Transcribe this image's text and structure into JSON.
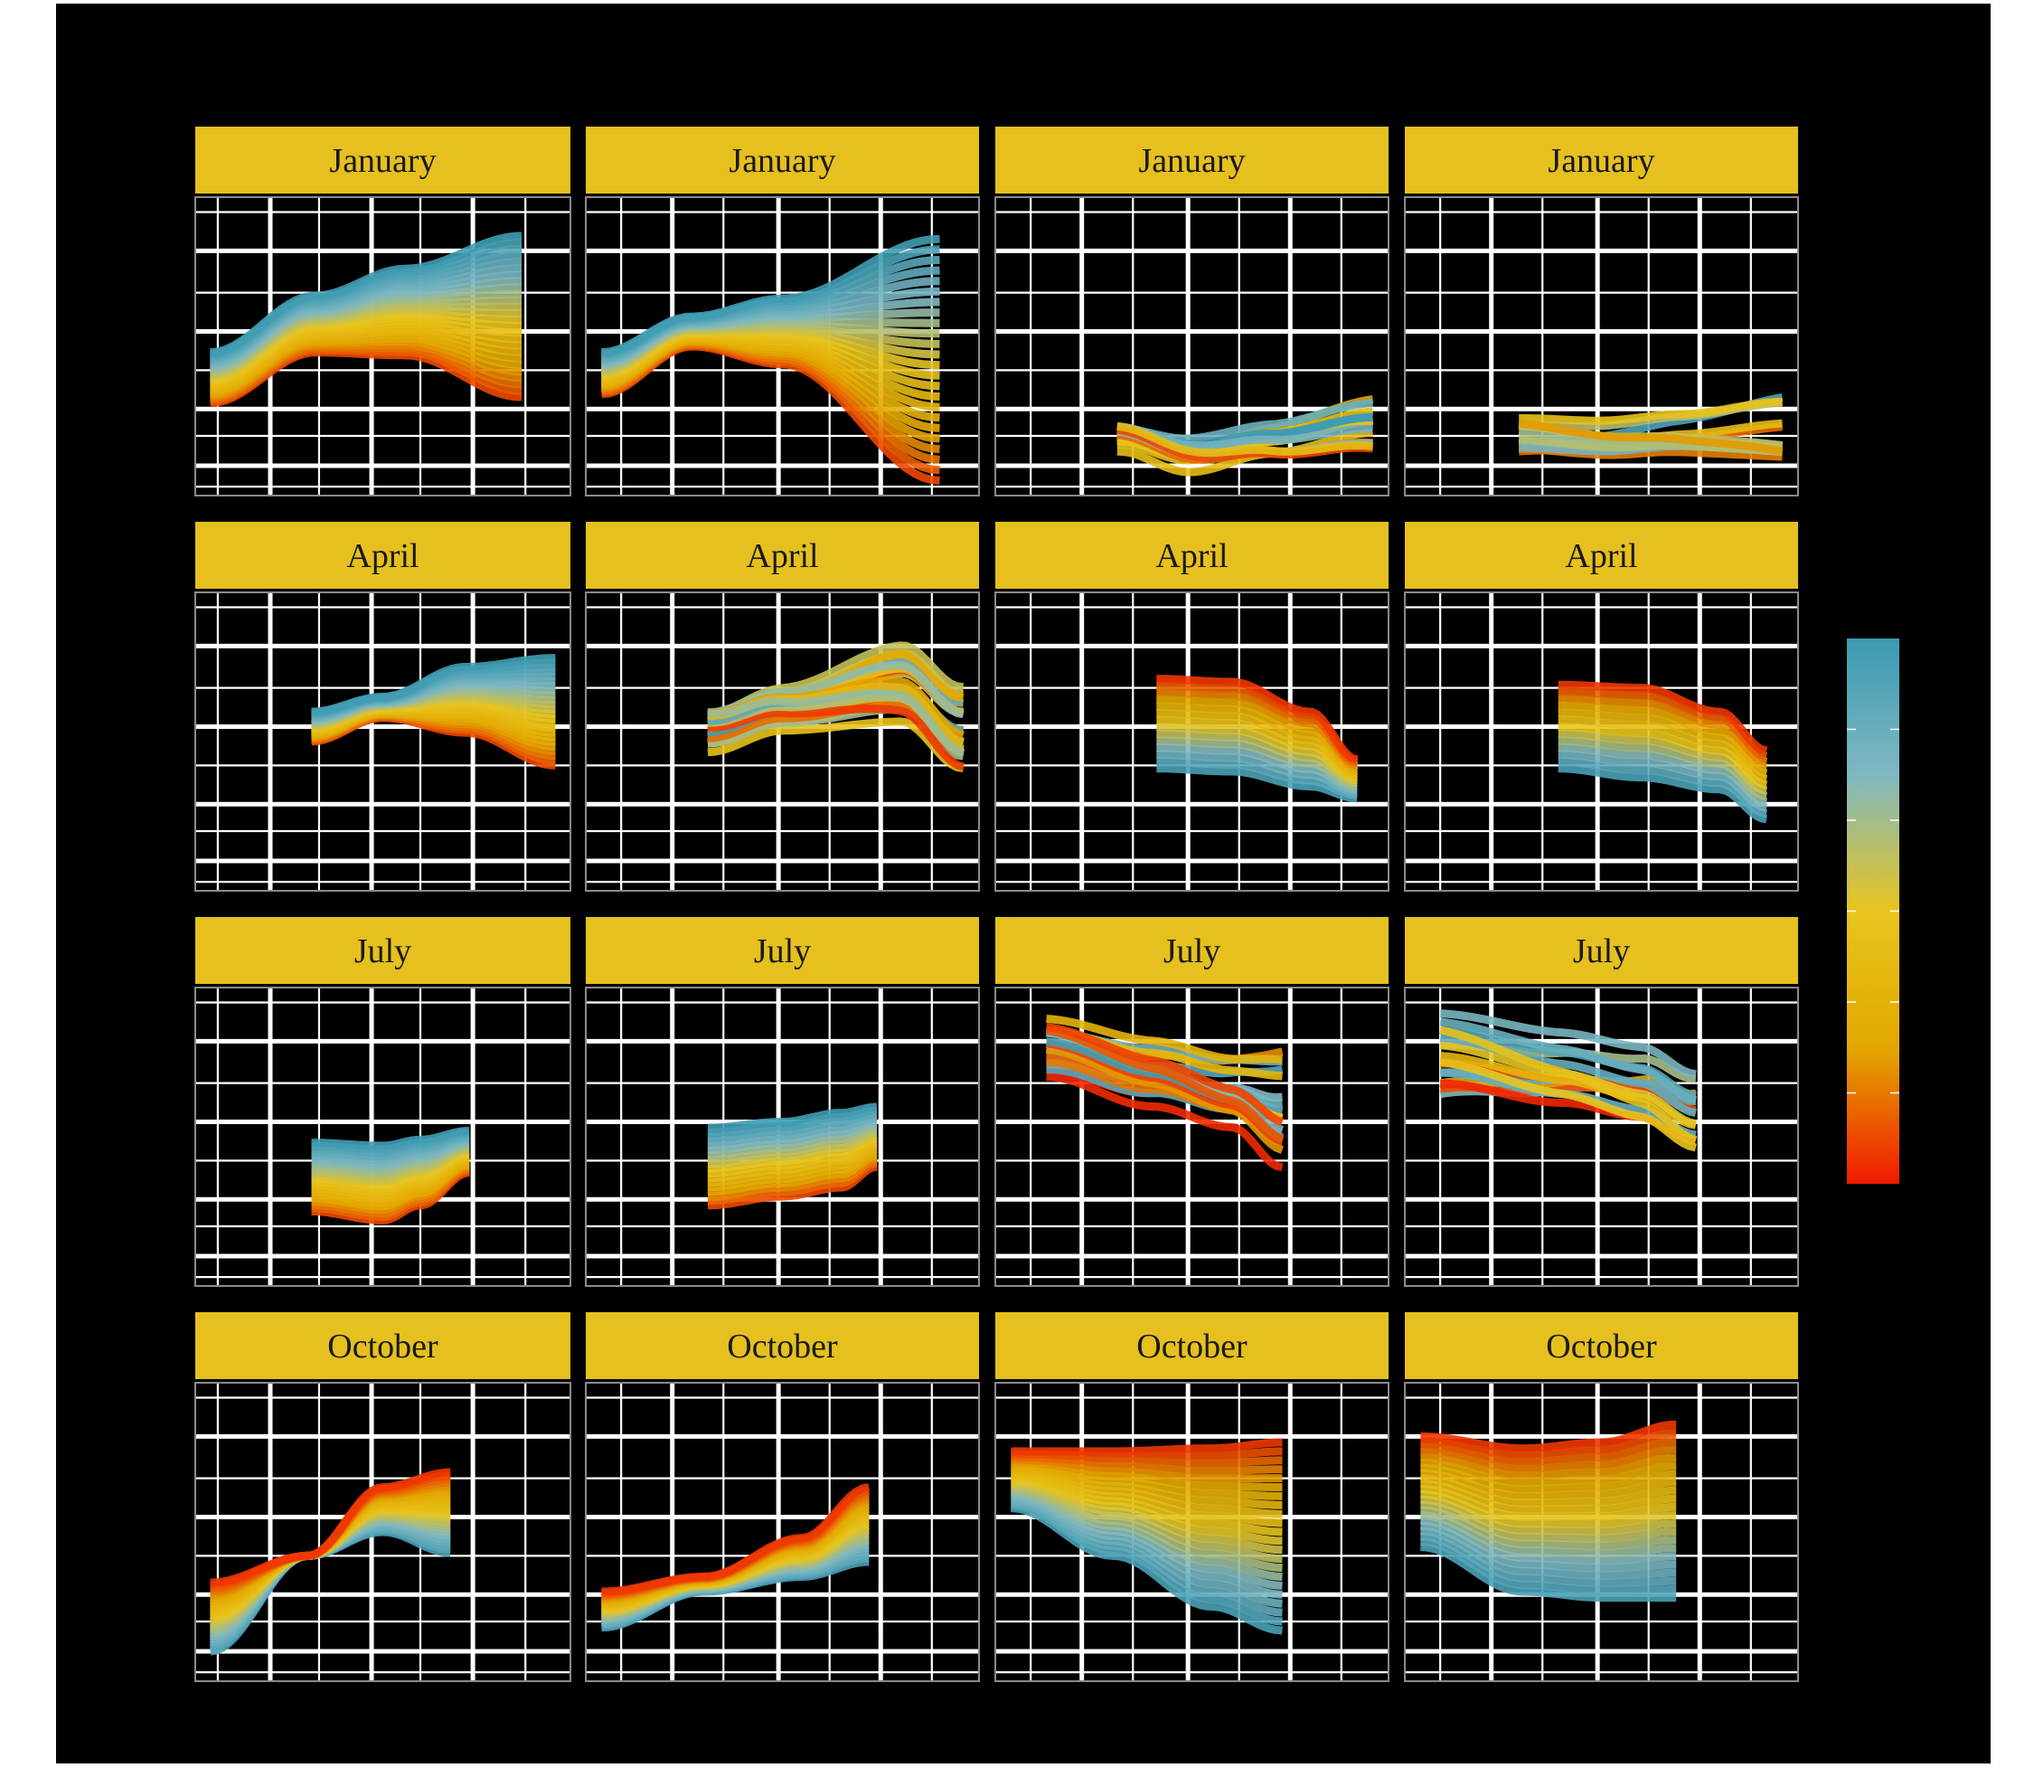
{
  "chart_data": {
    "type": "line",
    "layout": "4x4 facet grid",
    "rows": [
      "January",
      "April",
      "July",
      "October"
    ],
    "grid": true,
    "colors": {
      "background": "#000000",
      "gridline": "#ffffff",
      "strip_fill": "#E6C01E",
      "strip_text": "#1a1a1a"
    },
    "color_scale": {
      "type": "continuous",
      "legend_position": "right",
      "stops": [
        "#F21A00",
        "#E2A800",
        "#E8C51E",
        "#7FB8C2",
        "#3B9AB2"
      ]
    },
    "panels": [
      {
        "label": "January",
        "row": 0,
        "col": 0,
        "xlim": [
          0,
          1
        ],
        "ylim": [
          0,
          1
        ],
        "xticks": [
          0.06,
          0.2,
          0.33,
          0.47,
          0.6,
          0.74,
          0.88
        ],
        "yticks": [
          0.1,
          0.29,
          0.55,
          0.82
        ],
        "bundle": {
          "count": 26,
          "x": [
            0.04,
            0.32,
            0.56,
            0.87
          ],
          "top": [
            0.48,
            0.67,
            0.76,
            0.87
          ],
          "bottom": [
            0.31,
            0.48,
            0.47,
            0.33
          ],
          "order": "bottom-warm"
        }
      },
      {
        "label": "January",
        "row": 0,
        "col": 1,
        "xlim": [
          0,
          1
        ],
        "ylim": [
          0,
          1
        ],
        "xticks": [
          0.09,
          0.22,
          0.35,
          0.49,
          0.62,
          0.75,
          0.88
        ],
        "yticks": [
          0.1,
          0.29,
          0.55,
          0.82
        ],
        "bundle": {
          "count": 24,
          "x": [
            0.04,
            0.27,
            0.5,
            0.9
          ],
          "top": [
            0.48,
            0.6,
            0.66,
            0.86
          ],
          "bottom": [
            0.34,
            0.5,
            0.44,
            0.05
          ],
          "order": "bottom-warm"
        }
      },
      {
        "label": "January",
        "row": 0,
        "col": 2,
        "xlim": [
          0,
          1
        ],
        "ylim": [
          0,
          1
        ],
        "xticks": [
          0.09,
          0.22,
          0.35,
          0.49,
          0.62,
          0.75,
          0.88
        ],
        "yticks": [
          0.1,
          0.29,
          0.55,
          0.82
        ],
        "bundle": {
          "count": 14,
          "x": [
            0.31,
            0.5,
            0.7,
            0.96
          ],
          "top": [
            0.27,
            0.24,
            0.26,
            0.31
          ],
          "bottom": [
            0.13,
            0.04,
            0.1,
            0.16
          ],
          "order": "mixed"
        }
      },
      {
        "label": "January",
        "row": 0,
        "col": 3,
        "xlim": [
          0,
          1
        ],
        "ylim": [
          0,
          1
        ],
        "xticks": [
          0.09,
          0.22,
          0.35,
          0.49,
          0.62,
          0.75,
          0.88
        ],
        "yticks": [
          0.1,
          0.29,
          0.55,
          0.82
        ],
        "bundle": {
          "count": 12,
          "x": [
            0.29,
            0.5,
            0.7,
            0.96
          ],
          "top": [
            0.28,
            0.27,
            0.29,
            0.33
          ],
          "bottom": [
            0.12,
            0.11,
            0.13,
            0.12
          ],
          "order": "mixed"
        }
      },
      {
        "label": "April",
        "row": 1,
        "col": 0,
        "xlim": [
          0,
          1
        ],
        "ylim": [
          0,
          1
        ],
        "xticks": [
          0.06,
          0.2,
          0.33,
          0.47,
          0.6,
          0.74,
          0.88
        ],
        "yticks": [
          0.1,
          0.29,
          0.55,
          0.82
        ],
        "bundle": {
          "count": 24,
          "x": [
            0.31,
            0.5,
            0.72,
            0.96
          ],
          "top": [
            0.6,
            0.65,
            0.75,
            0.78
          ],
          "bottom": [
            0.5,
            0.58,
            0.53,
            0.42
          ],
          "order": "bottom-warm"
        }
      },
      {
        "label": "April",
        "row": 1,
        "col": 1,
        "xlim": [
          0,
          1
        ],
        "ylim": [
          0,
          1
        ],
        "xticks": [
          0.09,
          0.22,
          0.35,
          0.49,
          0.62,
          0.75,
          0.88
        ],
        "yticks": [
          0.1,
          0.29,
          0.55,
          0.82
        ],
        "bundle": {
          "count": 22,
          "x": [
            0.31,
            0.5,
            0.8,
            0.96
          ],
          "top": [
            0.63,
            0.7,
            0.82,
            0.66
          ],
          "bottom": [
            0.46,
            0.53,
            0.55,
            0.39
          ],
          "order": "mixed"
        }
      },
      {
        "label": "April",
        "row": 1,
        "col": 2,
        "xlim": [
          0,
          1
        ],
        "ylim": [
          0,
          1
        ],
        "xticks": [
          0.09,
          0.22,
          0.35,
          0.49,
          0.62,
          0.75,
          0.88
        ],
        "yticks": [
          0.1,
          0.29,
          0.55,
          0.82
        ],
        "bundle": {
          "count": 14,
          "x": [
            0.41,
            0.6,
            0.8,
            0.92
          ],
          "top": [
            0.71,
            0.7,
            0.6,
            0.44
          ],
          "bottom": [
            0.41,
            0.4,
            0.35,
            0.31
          ],
          "order": "top-warm"
        }
      },
      {
        "label": "April",
        "row": 1,
        "col": 3,
        "xlim": [
          0,
          1
        ],
        "ylim": [
          0,
          1
        ],
        "xticks": [
          0.09,
          0.22,
          0.35,
          0.49,
          0.62,
          0.75,
          0.88
        ],
        "yticks": [
          0.1,
          0.29,
          0.55,
          0.82
        ],
        "bundle": {
          "count": 13,
          "x": [
            0.39,
            0.6,
            0.8,
            0.92
          ],
          "top": [
            0.69,
            0.68,
            0.6,
            0.47
          ],
          "bottom": [
            0.41,
            0.38,
            0.34,
            0.24
          ],
          "order": "top-warm"
        }
      },
      {
        "label": "July",
        "row": 2,
        "col": 0,
        "xlim": [
          0,
          1
        ],
        "ylim": [
          0,
          1
        ],
        "xticks": [
          0.06,
          0.2,
          0.33,
          0.47,
          0.6,
          0.74,
          0.88
        ],
        "yticks": [
          0.1,
          0.29,
          0.55,
          0.82
        ],
        "bundle": {
          "count": 22,
          "x": [
            0.31,
            0.5,
            0.6,
            0.73
          ],
          "top": [
            0.48,
            0.47,
            0.49,
            0.52
          ],
          "bottom": [
            0.25,
            0.22,
            0.27,
            0.38
          ],
          "order": "bottom-warm"
        }
      },
      {
        "label": "July",
        "row": 2,
        "col": 1,
        "xlim": [
          0,
          1
        ],
        "ylim": [
          0,
          1
        ],
        "xticks": [
          0.09,
          0.22,
          0.35,
          0.49,
          0.62,
          0.75,
          0.88
        ],
        "yticks": [
          0.1,
          0.29,
          0.55,
          0.82
        ],
        "bundle": {
          "count": 18,
          "x": [
            0.31,
            0.5,
            0.65,
            0.74
          ],
          "top": [
            0.53,
            0.55,
            0.58,
            0.6
          ],
          "bottom": [
            0.27,
            0.3,
            0.33,
            0.4
          ],
          "order": "bottom-warm"
        }
      },
      {
        "label": "July",
        "row": 2,
        "col": 2,
        "xlim": [
          0,
          1
        ],
        "ylim": [
          0,
          1
        ],
        "xticks": [
          0.09,
          0.22,
          0.35,
          0.49,
          0.62,
          0.75,
          0.88
        ],
        "yticks": [
          0.1,
          0.29,
          0.55,
          0.82
        ],
        "bundle": {
          "count": 20,
          "x": [
            0.13,
            0.4,
            0.6,
            0.73
          ],
          "top": [
            0.9,
            0.85,
            0.81,
            0.84
          ],
          "bottom": [
            0.7,
            0.6,
            0.53,
            0.39
          ],
          "order": "mixed"
        }
      },
      {
        "label": "July",
        "row": 2,
        "col": 3,
        "xlim": [
          0,
          1
        ],
        "ylim": [
          0,
          1
        ],
        "xticks": [
          0.09,
          0.22,
          0.35,
          0.49,
          0.62,
          0.75,
          0.88
        ],
        "yticks": [
          0.1,
          0.29,
          0.55,
          0.82
        ],
        "bundle": {
          "count": 16,
          "x": [
            0.09,
            0.4,
            0.6,
            0.74
          ],
          "top": [
            0.92,
            0.88,
            0.85,
            0.77
          ],
          "bottom": [
            0.62,
            0.55,
            0.5,
            0.42
          ],
          "order": "mixed"
        }
      },
      {
        "label": "October",
        "row": 3,
        "col": 0,
        "xlim": [
          0,
          1
        ],
        "ylim": [
          0,
          1
        ],
        "xticks": [
          0.06,
          0.2,
          0.33,
          0.47,
          0.6,
          0.74,
          0.88
        ],
        "yticks": [
          0.1,
          0.29,
          0.55,
          0.82
        ],
        "bundle": {
          "count": 24,
          "x": [
            0.04,
            0.3,
            0.5,
            0.68
          ],
          "top": [
            0.33,
            0.42,
            0.65,
            0.7
          ],
          "bottom": [
            0.1,
            0.42,
            0.5,
            0.43
          ],
          "order": "top-warm"
        }
      },
      {
        "label": "October",
        "row": 3,
        "col": 1,
        "xlim": [
          0,
          1
        ],
        "ylim": [
          0,
          1
        ],
        "xticks": [
          0.09,
          0.22,
          0.35,
          0.49,
          0.62,
          0.75,
          0.88
        ],
        "yticks": [
          0.1,
          0.29,
          0.55,
          0.82
        ],
        "bundle": {
          "count": 22,
          "x": [
            0.04,
            0.3,
            0.55,
            0.72
          ],
          "top": [
            0.3,
            0.35,
            0.48,
            0.65
          ],
          "bottom": [
            0.18,
            0.3,
            0.35,
            0.4
          ],
          "order": "top-warm"
        }
      },
      {
        "label": "October",
        "row": 3,
        "col": 2,
        "xlim": [
          0,
          1
        ],
        "ylim": [
          0,
          1
        ],
        "xticks": [
          0.09,
          0.22,
          0.35,
          0.49,
          0.62,
          0.75,
          0.88
        ],
        "yticks": [
          0.1,
          0.29,
          0.55,
          0.82
        ],
        "bundle": {
          "count": 22,
          "x": [
            0.04,
            0.3,
            0.55,
            0.73
          ],
          "top": [
            0.77,
            0.77,
            0.78,
            0.8
          ],
          "bottom": [
            0.58,
            0.42,
            0.25,
            0.17
          ],
          "order": "top-warm"
        }
      },
      {
        "label": "October",
        "row": 3,
        "col": 3,
        "xlim": [
          0,
          1
        ],
        "ylim": [
          0,
          1
        ],
        "xticks": [
          0.09,
          0.22,
          0.35,
          0.49,
          0.62,
          0.75,
          0.88
        ],
        "yticks": [
          0.1,
          0.29,
          0.55,
          0.82
        ],
        "bundle": {
          "count": 22,
          "x": [
            0.04,
            0.3,
            0.5,
            0.69
          ],
          "top": [
            0.82,
            0.78,
            0.8,
            0.86
          ],
          "bottom": [
            0.45,
            0.3,
            0.28,
            0.28
          ],
          "order": "top-warm"
        }
      }
    ]
  }
}
